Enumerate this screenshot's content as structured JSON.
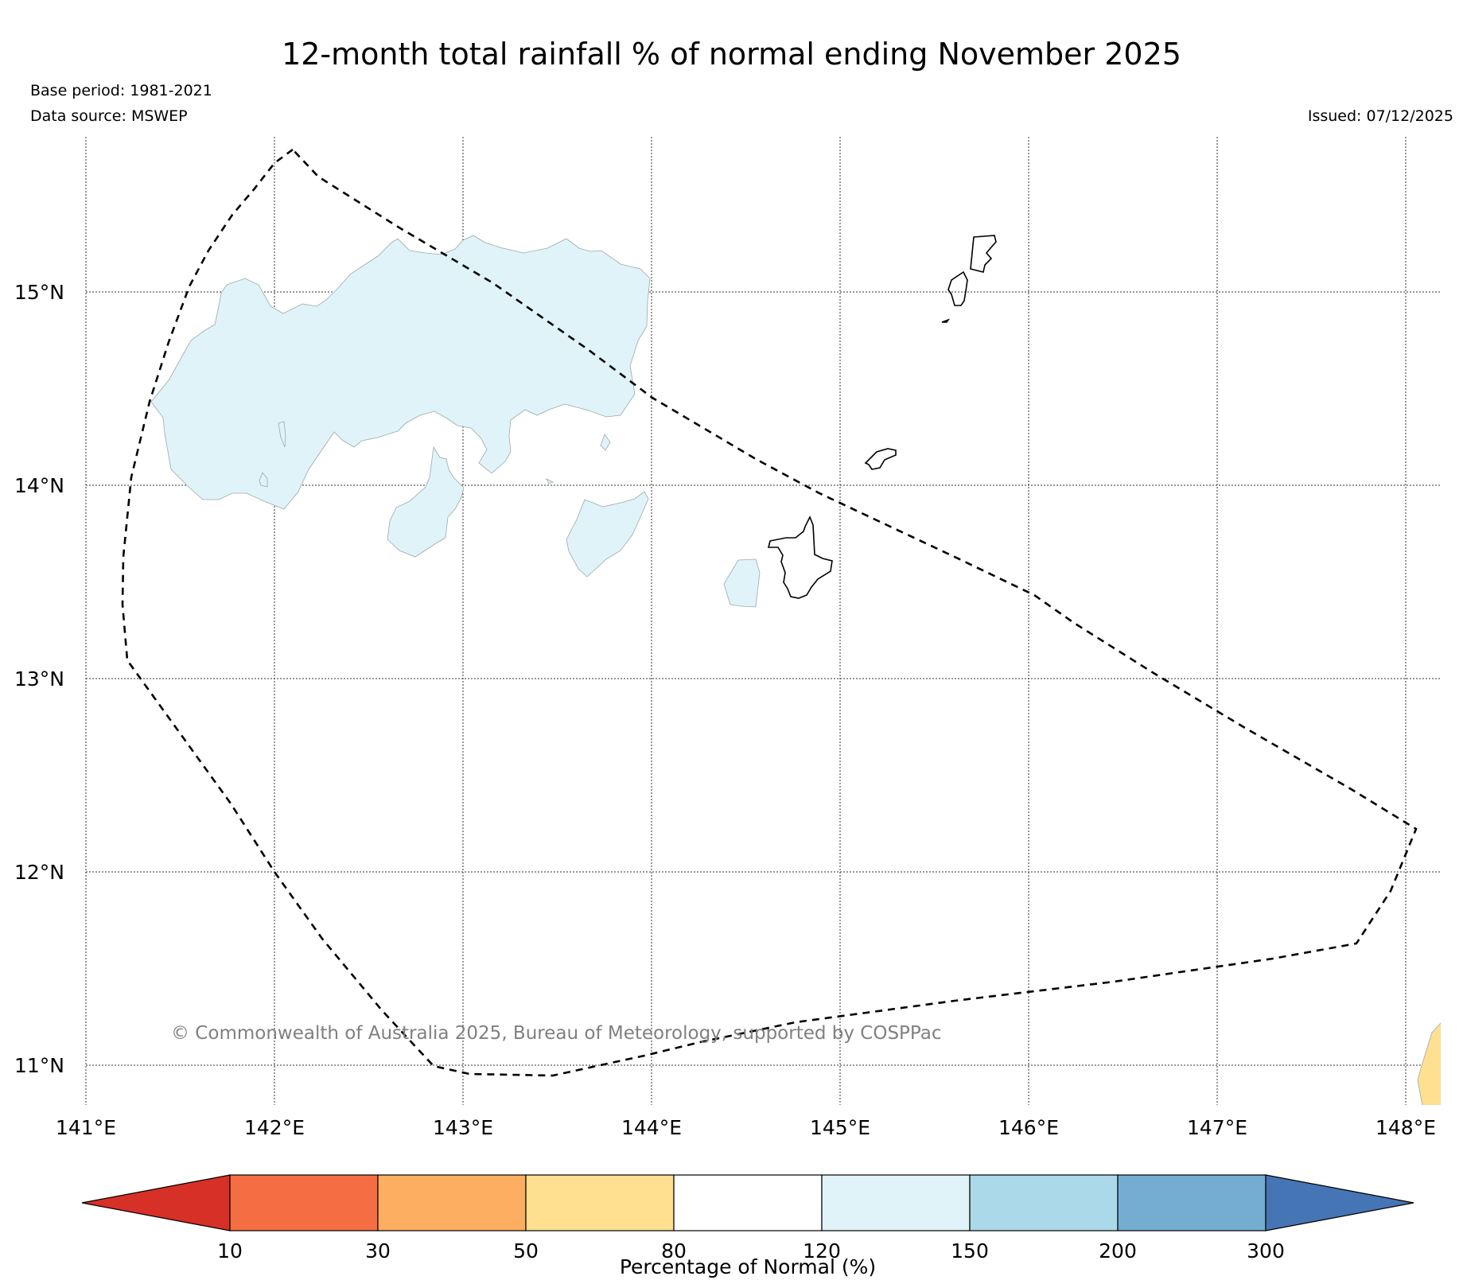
{
  "title": "12-month total rainfall % of normal ending November 2025",
  "base_period": "Base period: 1981-2021",
  "data_source": "Data source: MSWEP",
  "issued": "Issued: 07/12/2025",
  "copyright": "© Commonwealth of Australia 2025, Bureau of Meteorology, supported by COSPPac",
  "axes": {
    "lon_ticks": [
      "141°E",
      "142°E",
      "143°E",
      "144°E",
      "145°E",
      "146°E",
      "147°E",
      "148°E"
    ],
    "lat_ticks": [
      "15°N",
      "14°N",
      "13°N",
      "12°N",
      "11°N"
    ]
  },
  "colorbar": {
    "label": "Percentage of Normal (%)",
    "boundaries": [
      "10",
      "30",
      "50",
      "80",
      "120",
      "150",
      "200",
      "300"
    ],
    "colors": [
      "#d73027",
      "#f46d43",
      "#fdae61",
      "#fee090",
      "#ffffff",
      "#e0f3f8",
      "#abd9e9",
      "#74add1",
      "#4575b4"
    ]
  },
  "legend_classes": {
    "near_normal_wetter": "#e0f3f8",
    "drier": "#fee090"
  }
}
